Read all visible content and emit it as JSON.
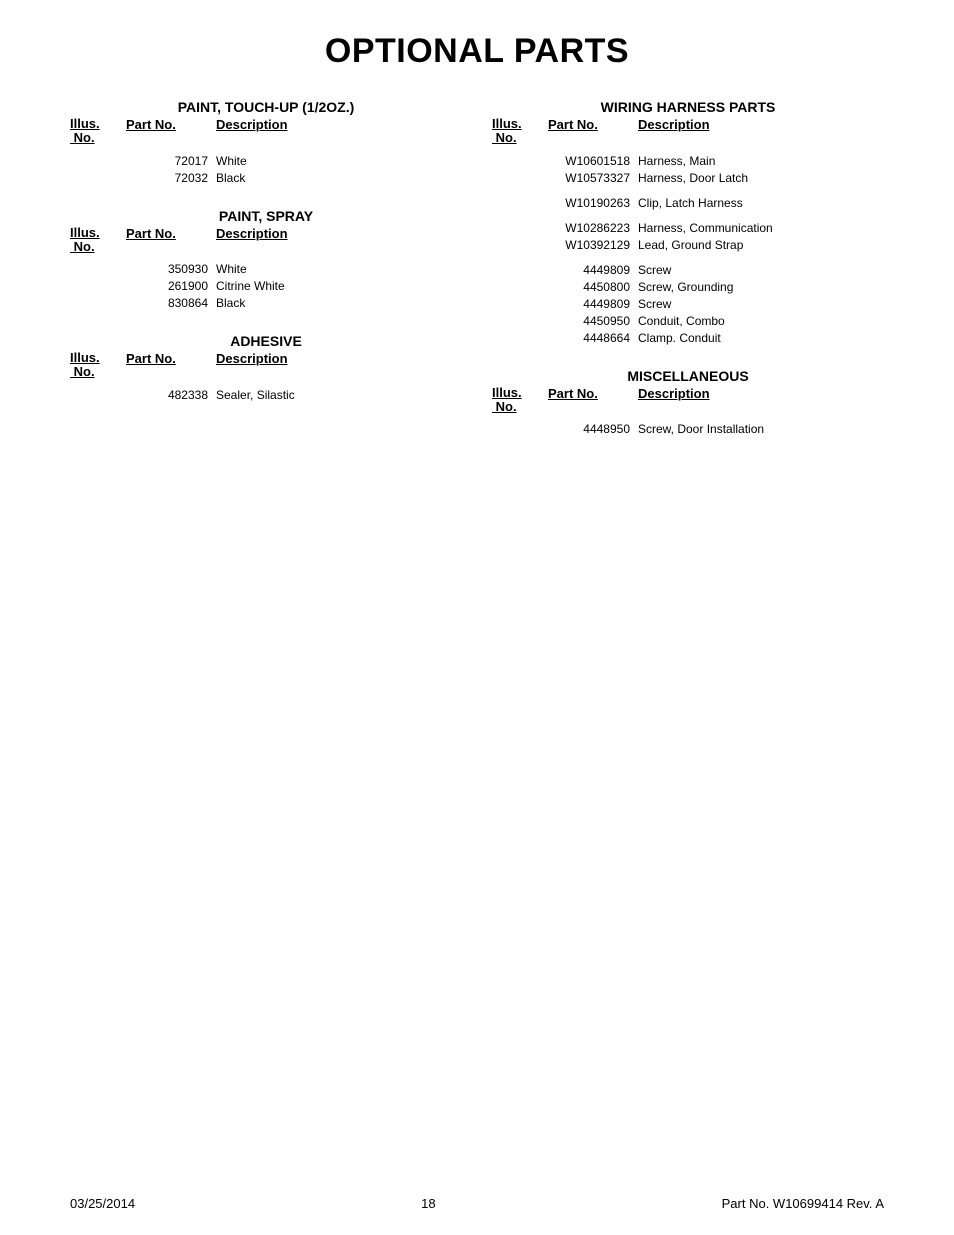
{
  "page_title": "OPTIONAL PARTS",
  "columns": {
    "illus_top": "Illus.",
    "illus_bottom": "No.",
    "partno": "Part No.",
    "desc": "Description"
  },
  "left_sections": [
    {
      "title": "PAINT, TOUCH-UP (1/2OZ.)",
      "rows": [
        {
          "partno": "72017",
          "desc": "White"
        },
        {
          "partno": "72032",
          "desc": "Black"
        }
      ]
    },
    {
      "title": "PAINT, SPRAY",
      "rows": [
        {
          "partno": "350930",
          "desc": "White"
        },
        {
          "partno": "261900",
          "desc": "Citrine White"
        },
        {
          "partno": "830864",
          "desc": "Black"
        }
      ]
    },
    {
      "title": "ADHESIVE",
      "rows": [
        {
          "partno": "482338",
          "desc": "Sealer, Silastic"
        }
      ]
    }
  ],
  "right_sections": [
    {
      "title": "WIRING HARNESS PARTS",
      "rows": [
        {
          "partno": "W10601518",
          "desc": "Harness, Main"
        },
        {
          "partno": "W10573327",
          "desc": "Harness, Door Latch"
        },
        {
          "partno": "",
          "desc": "",
          "spacer": true
        },
        {
          "partno": "W10190263",
          "desc": "Clip, Latch Harness"
        },
        {
          "partno": "",
          "desc": "",
          "spacer": true
        },
        {
          "partno": "W10286223",
          "desc": "Harness, Communication"
        },
        {
          "partno": "W10392129",
          "desc": "Lead, Ground Strap"
        },
        {
          "partno": "",
          "desc": "",
          "spacer": true
        },
        {
          "partno": "4449809",
          "desc": "Screw"
        },
        {
          "partno": "4450800",
          "desc": "Screw, Grounding"
        },
        {
          "partno": "4449809",
          "desc": "Screw"
        },
        {
          "partno": "4450950",
          "desc": "Conduit, Combo"
        },
        {
          "partno": "4448664",
          "desc": "Clamp. Conduit"
        }
      ]
    },
    {
      "title": "MISCELLANEOUS",
      "rows": [
        {
          "partno": "4448950",
          "desc": "Screw, Door Installation"
        }
      ]
    }
  ],
  "footer": {
    "date": "03/25/2014",
    "page": "18",
    "rev": "Part No.  W10699414  Rev.  A"
  }
}
